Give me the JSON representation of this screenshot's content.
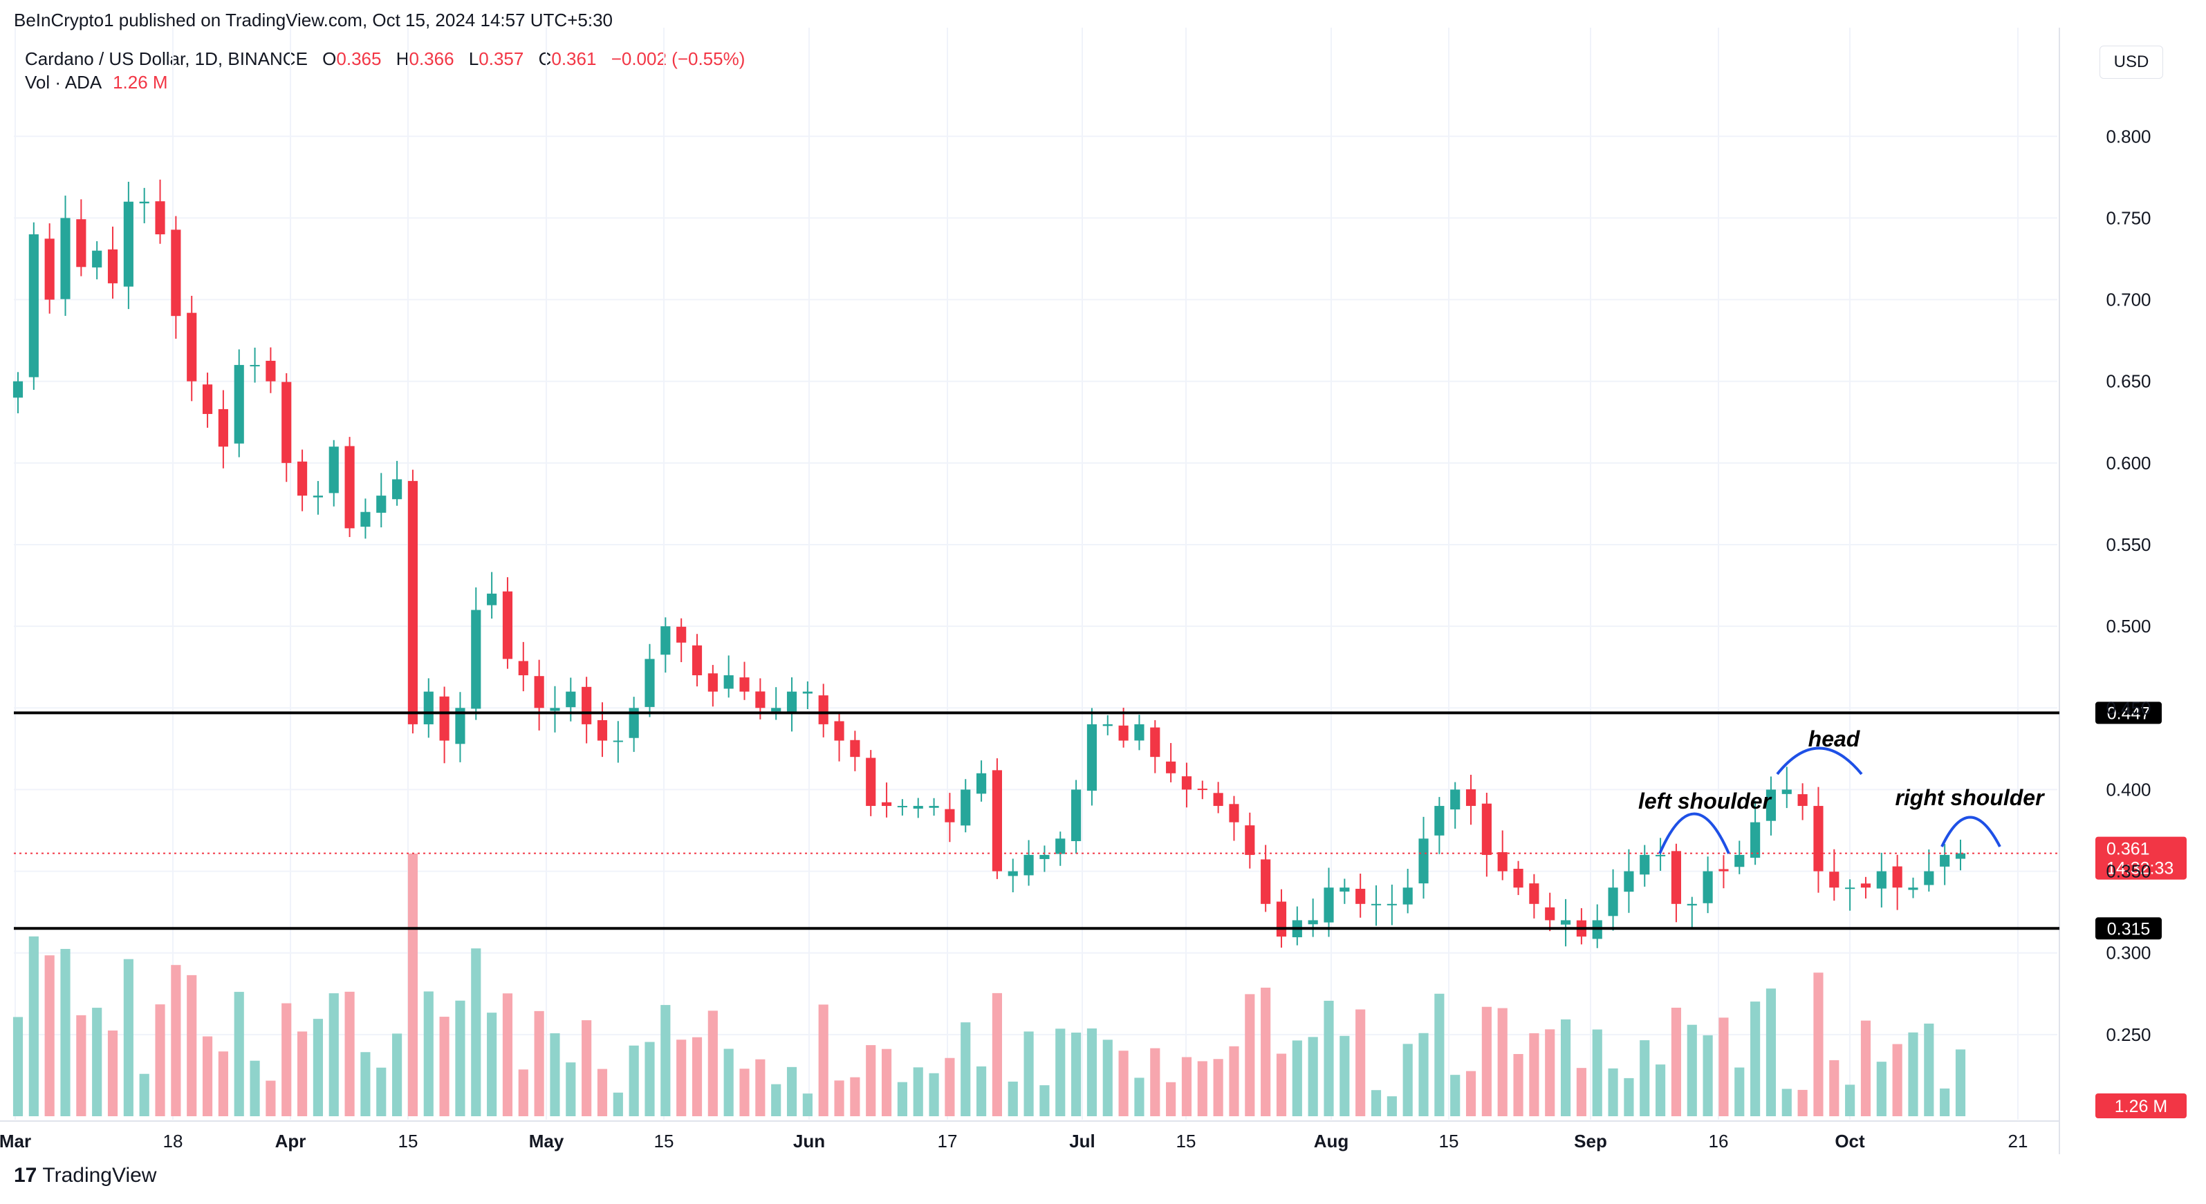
{
  "header": {
    "publisher": "BeInCrypto1 published on TradingView.com, Oct 15, 2024 14:57 UTC+5:30"
  },
  "legend": {
    "symbol": "Cardano / US Dollar, 1D, BINANCE",
    "o_label": "O",
    "o_value": "0.365",
    "h_label": "H",
    "h_value": "0.366",
    "l_label": "L",
    "l_value": "0.357",
    "c_label": "C",
    "c_value": "0.361",
    "change": "−0.002 (−0.55%)",
    "vol_label": "Vol · ADA",
    "vol_value": "1.26 M"
  },
  "currency_button": "USD",
  "footer": {
    "logo_glyph": "17",
    "brand": "TradingView"
  },
  "colors": {
    "up": "#26a69a",
    "down": "#f23645",
    "up_vol": "#8fd3cb",
    "down_vol": "#f7a6ae",
    "text": "#131722",
    "grid": "#f0f3fa"
  },
  "chart_data": {
    "type": "candlestick",
    "symbol": "Cardano / US Dollar, 1D, BINANCE",
    "y_axis": {
      "ticks": [
        "0.800",
        "0.750",
        "0.700",
        "0.650",
        "0.600",
        "0.550",
        "0.500",
        "0.450",
        "0.400",
        "0.350",
        "0.300",
        "0.250"
      ],
      "ylim": [
        0.2,
        0.82
      ],
      "currency": "USD"
    },
    "x_axis": {
      "ticks": [
        "Mar",
        "18",
        "Apr",
        "15",
        "May",
        "15",
        "Jun",
        "17",
        "Jul",
        "15",
        "Aug",
        "15",
        "Sep",
        "16",
        "Oct",
        "21"
      ]
    },
    "grid": true,
    "price_series": [
      0.65,
      0.74,
      0.7,
      0.75,
      0.72,
      0.73,
      0.71,
      0.76,
      0.76,
      0.74,
      0.69,
      0.65,
      0.63,
      0.61,
      0.66,
      0.66,
      0.65,
      0.6,
      0.58,
      0.58,
      0.61,
      0.56,
      0.57,
      0.58,
      0.59,
      0.44,
      0.46,
      0.43,
      0.45,
      0.51,
      0.52,
      0.48,
      0.47,
      0.45,
      0.45,
      0.46,
      0.44,
      0.43,
      0.43,
      0.45,
      0.48,
      0.5,
      0.49,
      0.47,
      0.46,
      0.47,
      0.46,
      0.45,
      0.45,
      0.46,
      0.46,
      0.44,
      0.43,
      0.42,
      0.39,
      0.39,
      0.39,
      0.39,
      0.39,
      0.38,
      0.4,
      0.41,
      0.35,
      0.35,
      0.36,
      0.36,
      0.37,
      0.4,
      0.44,
      0.44,
      0.43,
      0.44,
      0.42,
      0.41,
      0.4,
      0.4,
      0.39,
      0.38,
      0.36,
      0.33,
      0.31,
      0.32,
      0.32,
      0.34,
      0.34,
      0.33,
      0.33,
      0.33,
      0.34,
      0.37,
      0.39,
      0.4,
      0.39,
      0.36,
      0.35,
      0.34,
      0.33,
      0.32,
      0.32,
      0.31,
      0.32,
      0.34,
      0.35,
      0.36,
      0.36,
      0.33,
      0.33,
      0.35,
      0.35,
      0.36,
      0.38,
      0.4,
      0.4,
      0.39,
      0.35,
      0.34,
      0.34,
      0.34,
      0.35,
      0.34,
      0.34,
      0.35,
      0.36,
      0.361
    ],
    "key_levels": [
      {
        "price": "0.447",
        "label": "0.447"
      },
      {
        "price": "0.315",
        "label": "0.315"
      }
    ],
    "current_price": {
      "value": "0.361",
      "countdown": "14:32:33"
    },
    "volume_label": "1.26 M",
    "annotations": [
      {
        "text": "left shoulder"
      },
      {
        "text": "head"
      },
      {
        "text": "right shoulder"
      }
    ]
  }
}
